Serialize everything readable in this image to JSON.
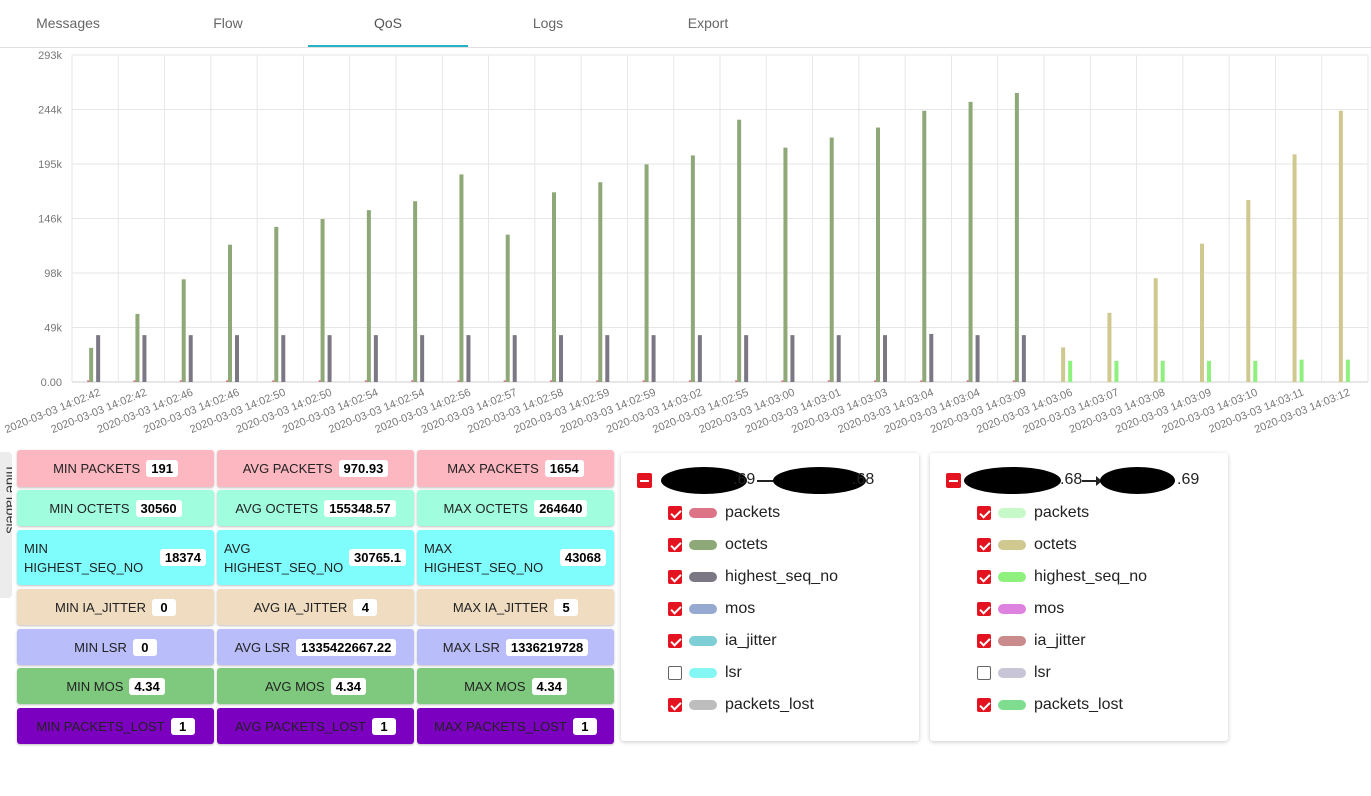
{
  "tabs": [
    {
      "label": "Messages",
      "active": false
    },
    {
      "label": "Flow",
      "active": false
    },
    {
      "label": "QoS",
      "active": true
    },
    {
      "label": "Logs",
      "active": false
    },
    {
      "label": "Export",
      "active": false
    }
  ],
  "sidebar_toggle": {
    "label": "hide labels"
  },
  "chart_data": {
    "type": "bar",
    "title": "",
    "xlabel": "",
    "ylabel": "",
    "ylim": [
      0,
      293000
    ],
    "y_ticks": [
      "0.00",
      "49k",
      "98k",
      "146k",
      "195k",
      "244k",
      "293k"
    ],
    "grid": true,
    "categories": [
      "2020-03-03 14:02:42",
      "2020-03-03 14:02:42",
      "2020-03-03 14:02:46",
      "2020-03-03 14:02:46",
      "2020-03-03 14:02:50",
      "2020-03-03 14:02:50",
      "2020-03-03 14:02:54",
      "2020-03-03 14:02:54",
      "2020-03-03 14:02:56",
      "2020-03-03 14:02:57",
      "2020-03-03 14:02:58",
      "2020-03-03 14:02:59",
      "2020-03-03 14:02:59",
      "2020-03-03 14:03:02",
      "2020-03-03 14:02:55",
      "2020-03-03 14:03:00",
      "2020-03-03 14:03:01",
      "2020-03-03 14:03:03",
      "2020-03-03 14:03:04",
      "2020-03-03 14:03:04",
      "2020-03-03 14:03:09",
      "2020-03-03 14:03:06",
      "2020-03-03 14:03:07",
      "2020-03-03 14:03:08",
      "2020-03-03 14:03:09",
      "2020-03-03 14:03:10",
      "2020-03-03 14:03:11",
      "2020-03-03 14:03:12"
    ],
    "series": [
      {
        "color": "#8fa877",
        "values": [
          30560,
          61000,
          92000,
          123000,
          139000,
          146000,
          154000,
          162000,
          186000,
          132000,
          170000,
          179000,
          195000,
          203000,
          235000,
          210000,
          219000,
          228000,
          243000,
          251000,
          259000,
          null,
          null,
          null,
          null,
          null,
          null,
          null
        ]
      },
      {
        "color": "#7c7784",
        "values": [
          42000,
          42000,
          42000,
          42000,
          42000,
          42000,
          42000,
          42000,
          42000,
          42000,
          42000,
          42000,
          42000,
          42000,
          42000,
          42000,
          42000,
          42000,
          43068,
          42000,
          42000,
          null,
          null,
          null,
          null,
          null,
          null,
          null
        ]
      },
      {
        "color": "#d9748a",
        "values": [
          1500,
          1500,
          1500,
          1500,
          1500,
          1500,
          1500,
          1500,
          1500,
          1500,
          1500,
          1500,
          1500,
          1500,
          1500,
          1500,
          1500,
          1500,
          1500,
          1500,
          1500,
          null,
          null,
          null,
          null,
          null,
          null,
          null
        ]
      },
      {
        "color": "#cfc88f",
        "values": [
          null,
          null,
          null,
          null,
          null,
          null,
          null,
          null,
          null,
          null,
          null,
          null,
          null,
          null,
          null,
          null,
          null,
          null,
          null,
          null,
          null,
          31000,
          62000,
          93000,
          124000,
          163000,
          204000,
          243000
        ]
      },
      {
        "color": "#8ef07d",
        "values": [
          null,
          null,
          null,
          null,
          null,
          null,
          null,
          null,
          null,
          null,
          null,
          null,
          null,
          null,
          null,
          null,
          null,
          null,
          null,
          null,
          null,
          19000,
          19000,
          19000,
          19000,
          19000,
          20000,
          20000
        ]
      }
    ]
  },
  "stats": [
    {
      "label": "MIN PACKETS",
      "value": "191",
      "bg": "#fdb7c0"
    },
    {
      "label": "AVG PACKETS",
      "value": "970.93",
      "bg": "#fdb7c0"
    },
    {
      "label": "MAX PACKETS",
      "value": "1654",
      "bg": "#fdb7c0"
    },
    {
      "label": "MIN OCTETS",
      "value": "30560",
      "bg": "#a0fddd"
    },
    {
      "label": "AVG OCTETS",
      "value": "155348.57",
      "bg": "#a0fddd"
    },
    {
      "label": "MAX OCTETS",
      "value": "264640",
      "bg": "#a0fddd"
    },
    {
      "label": "MIN HIGHEST_SEQ_NO",
      "value": "18374",
      "bg": "#7ffdfd"
    },
    {
      "label": "AVG HIGHEST_SEQ_NO",
      "value": "30765.1",
      "bg": "#7ffdfd"
    },
    {
      "label": "MAX HIGHEST_SEQ_NO",
      "value": "43068",
      "bg": "#7ffdfd"
    },
    {
      "label": "MIN IA_JITTER",
      "value": "0",
      "bg": "#efdcc1"
    },
    {
      "label": "AVG IA_JITTER",
      "value": "4",
      "bg": "#efdcc1"
    },
    {
      "label": "MAX IA_JITTER",
      "value": "5",
      "bg": "#efdcc1"
    },
    {
      "label": "MIN LSR",
      "value": "0",
      "bg": "#b9bdfa"
    },
    {
      "label": "AVG LSR",
      "value": "1335422667.22",
      "bg": "#b9bdfa"
    },
    {
      "label": "MAX LSR",
      "value": "1336219728",
      "bg": "#b9bdfa"
    },
    {
      "label": "MIN MOS",
      "value": "4.34",
      "bg": "#7fc97f"
    },
    {
      "label": "AVG MOS",
      "value": "4.34",
      "bg": "#7fc97f"
    },
    {
      "label": "MAX MOS",
      "value": "4.34",
      "bg": "#7fc97f"
    },
    {
      "label": "MIN PACKETS_LOST",
      "value": "1",
      "bg": "#7c00c0"
    },
    {
      "label": "AVG PACKETS_LOST",
      "value": "1",
      "bg": "#7c00c0"
    },
    {
      "label": "MAX PACKETS_LOST",
      "value": "1",
      "bg": "#7c00c0"
    }
  ],
  "stream_cards": [
    {
      "from_suffix": ".69",
      "to_suffix": ".68",
      "items": [
        {
          "name": "packets",
          "checked": true,
          "color": "#dc7387"
        },
        {
          "name": "octets",
          "checked": true,
          "color": "#8fa877"
        },
        {
          "name": "highest_seq_no",
          "checked": true,
          "color": "#7c7784"
        },
        {
          "name": "mos",
          "checked": true,
          "color": "#96a9d1"
        },
        {
          "name": "ia_jitter",
          "checked": true,
          "color": "#7dcfd5"
        },
        {
          "name": "lsr",
          "checked": false,
          "color": "#84f7f5"
        },
        {
          "name": "packets_lost",
          "checked": true,
          "color": "#bdbdbd"
        }
      ]
    },
    {
      "from_suffix": ".68",
      "to_suffix": ".69",
      "items": [
        {
          "name": "packets",
          "checked": true,
          "color": "#c7f8c8"
        },
        {
          "name": "octets",
          "checked": true,
          "color": "#cfc88f"
        },
        {
          "name": "highest_seq_no",
          "checked": true,
          "color": "#8ef07d"
        },
        {
          "name": "mos",
          "checked": true,
          "color": "#dd82de"
        },
        {
          "name": "ia_jitter",
          "checked": true,
          "color": "#c98b8b"
        },
        {
          "name": "lsr",
          "checked": false,
          "color": "#c7c5d6"
        },
        {
          "name": "packets_lost",
          "checked": true,
          "color": "#7fdd8f"
        }
      ]
    }
  ]
}
